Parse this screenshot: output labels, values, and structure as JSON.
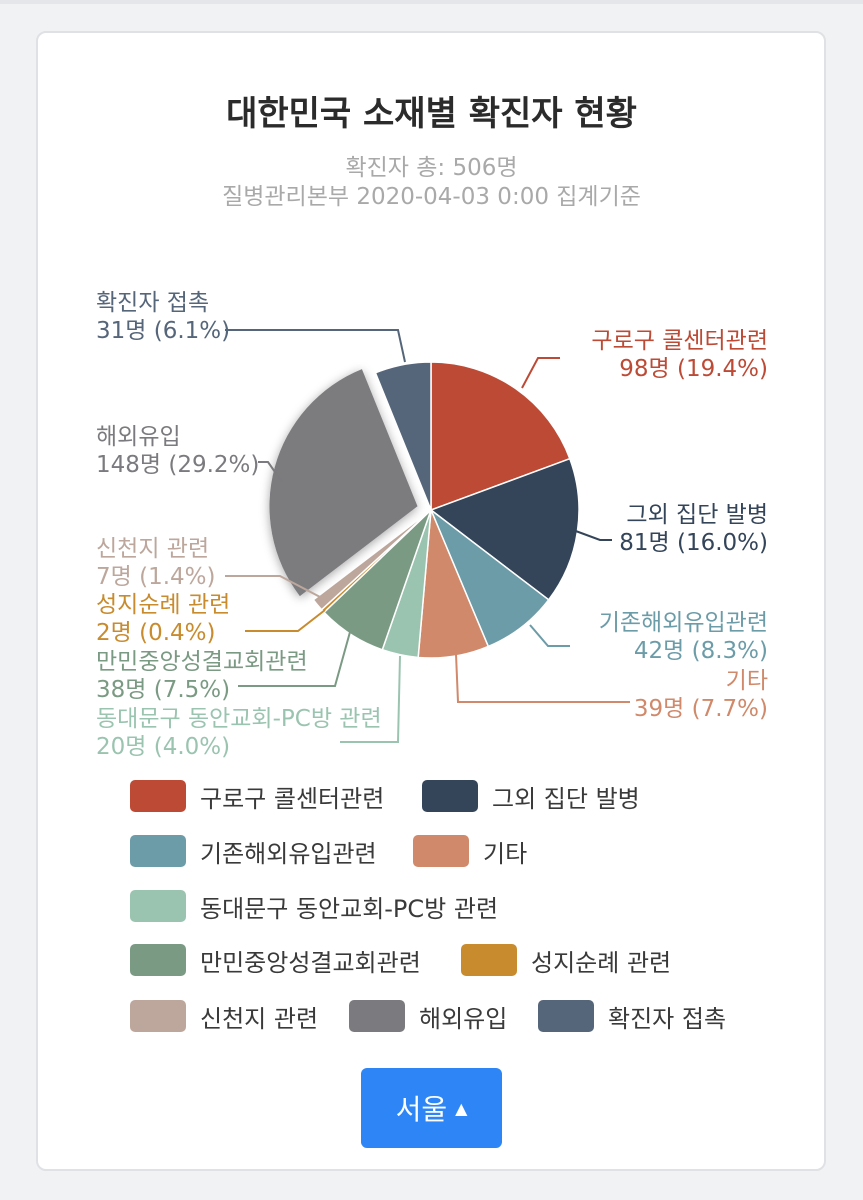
{
  "chart_data": {
    "type": "pie",
    "title": "대한민국 소재별 확진자 현황",
    "subtitle": "확진자 총: 506명",
    "subtitle2": "질병관리본부 2020-04-03 0:00 집계기준",
    "total": 506,
    "selected_slice": "해외유입",
    "slices": [
      {
        "name": "구로구 콜센터관련",
        "value": 98,
        "percent": 19.4,
        "label": "98명 (19.4%)",
        "color": "#bd4a35"
      },
      {
        "name": "그외 집단 발병",
        "value": 81,
        "percent": 16.0,
        "label": "81명 (16.0%)",
        "color": "#34455a"
      },
      {
        "name": "기존해외유입관련",
        "value": 42,
        "percent": 8.3,
        "label": "42명 (8.3%)",
        "color": "#6c9ca8"
      },
      {
        "name": "기타",
        "value": 39,
        "percent": 7.7,
        "label": "39명 (7.7%)",
        "color": "#d0896a"
      },
      {
        "name": "동대문구 동안교회-PC방 관련",
        "value": 20,
        "percent": 4.0,
        "label": "20명 (4.0%)",
        "color": "#9bc4b0"
      },
      {
        "name": "만민중앙성결교회관련",
        "value": 38,
        "percent": 7.5,
        "label": "38명 (7.5%)",
        "color": "#7a9a83"
      },
      {
        "name": "성지순례 관련",
        "value": 2,
        "percent": 0.4,
        "label": "2명 (0.4%)",
        "color": "#c88b2e"
      },
      {
        "name": "신천지 관련",
        "value": 7,
        "percent": 1.4,
        "label": "7명 (1.4%)",
        "color": "#bda79c"
      },
      {
        "name": "해외유입",
        "value": 148,
        "percent": 29.2,
        "label": "148명 (29.2%)",
        "color": "#7b7b7f"
      },
      {
        "name": "확진자 접촉",
        "value": 31,
        "percent": 6.1,
        "label": "31명 (6.1%)",
        "color": "#56667a"
      }
    ]
  },
  "region_button": {
    "label": "서울",
    "icon": "caret-up-icon"
  }
}
